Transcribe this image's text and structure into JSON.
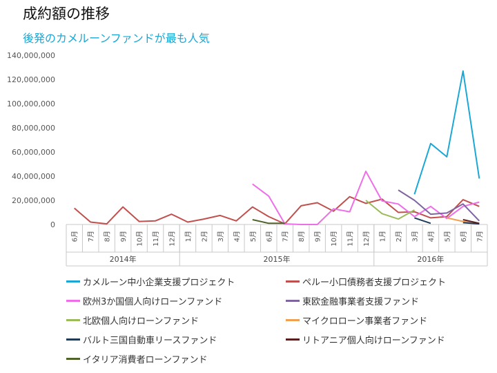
{
  "title": "成約額の推移",
  "subtitle": "後発のカメルーンファンドが最も人気",
  "chart_data": {
    "type": "line",
    "months": [
      "6月",
      "7月",
      "8月",
      "9月",
      "10月",
      "11月",
      "12月",
      "1月",
      "2月",
      "3月",
      "4月",
      "5月",
      "6月",
      "7月",
      "8月",
      "9月",
      "10月",
      "11月",
      "12月",
      "1月",
      "2月",
      "3月",
      "4月",
      "5月",
      "6月",
      "7月"
    ],
    "years": [
      {
        "label": "2014年",
        "start": 0,
        "end": 6
      },
      {
        "label": "2015年",
        "start": 7,
        "end": 18
      },
      {
        "label": "2016年",
        "start": 19,
        "end": 25
      }
    ],
    "ylim": [
      0,
      140000000
    ],
    "y_ticks": [
      0,
      20000000,
      40000000,
      60000000,
      80000000,
      100000000,
      120000000,
      140000000
    ],
    "y_tick_labels": [
      "0",
      "20,000,000",
      "40,000,000",
      "60,000,000",
      "80,000,000",
      "100,000,000",
      "120,000,000",
      "140,000,000"
    ],
    "series": [
      {
        "name": "カメルーン中小企業支援プロジェクト",
        "color": "#1aa7d6",
        "values": [
          null,
          null,
          null,
          null,
          null,
          null,
          null,
          null,
          null,
          null,
          null,
          null,
          null,
          null,
          null,
          null,
          null,
          null,
          null,
          null,
          null,
          25000000,
          67000000,
          56000000,
          127000000,
          38000000
        ]
      },
      {
        "name": "ペルー小口債務者支援プロジェクト",
        "color": "#c0504d",
        "values": [
          13500000,
          2000000,
          500000,
          14500000,
          2500000,
          3000000,
          8500000,
          2000000,
          4500000,
          7500000,
          3000000,
          14500000,
          6500000,
          500000,
          15500000,
          18000000,
          11000000,
          23000000,
          17500000,
          21000000,
          10000000,
          10500000,
          5500000,
          6500000,
          20500000,
          15000000
        ]
      },
      {
        "name": "欧州3か国個人向けローンファンド",
        "color": "#ee6ee8",
        "values": [
          null,
          null,
          null,
          null,
          null,
          null,
          null,
          null,
          null,
          null,
          null,
          33500000,
          23500000,
          500000,
          0,
          0,
          13000000,
          10500000,
          44000000,
          19500000,
          17000000,
          6500000,
          15000000,
          5000000,
          15000000,
          18500000
        ]
      },
      {
        "name": "東欧金融事業者支援ファンド",
        "color": "#7e64a0",
        "values": [
          null,
          null,
          null,
          null,
          null,
          null,
          null,
          null,
          null,
          null,
          null,
          null,
          null,
          null,
          null,
          null,
          null,
          null,
          null,
          null,
          28500000,
          20000000,
          8500000,
          9500000,
          17000000,
          3000000
        ]
      },
      {
        "name": "北欧個人向けローンファンド",
        "color": "#9bbb59",
        "values": [
          null,
          null,
          null,
          null,
          null,
          null,
          null,
          null,
          null,
          null,
          null,
          null,
          null,
          null,
          null,
          null,
          null,
          null,
          20000000,
          9000000,
          4500000,
          12000000,
          null,
          null,
          null,
          null
        ]
      },
      {
        "name": "マイクロローン事業者ファンド",
        "color": "#f0a050",
        "values": [
          null,
          null,
          null,
          null,
          null,
          null,
          null,
          null,
          null,
          null,
          null,
          null,
          null,
          null,
          null,
          null,
          null,
          null,
          null,
          null,
          null,
          null,
          null,
          5500000,
          2500000,
          500000
        ]
      },
      {
        "name": "バルト三国自動車リースファンド",
        "color": "#1f3b57",
        "values": [
          null,
          null,
          null,
          null,
          null,
          null,
          null,
          null,
          null,
          null,
          null,
          null,
          null,
          null,
          null,
          null,
          null,
          null,
          null,
          null,
          null,
          5500000,
          1000000,
          null,
          1500000,
          500000
        ]
      },
      {
        "name": "リトアニア個人向けローンファンド",
        "color": "#5a1e1e",
        "values": [
          null,
          null,
          null,
          null,
          null,
          null,
          null,
          null,
          null,
          null,
          null,
          null,
          null,
          null,
          null,
          null,
          null,
          null,
          null,
          null,
          null,
          null,
          null,
          null,
          4000000,
          1000000
        ]
      },
      {
        "name": "イタリア消費者ローンファンド",
        "color": "#4f6228",
        "values": [
          null,
          null,
          null,
          null,
          null,
          null,
          null,
          null,
          null,
          null,
          null,
          4000000,
          1000000,
          1000000,
          null,
          null,
          null,
          null,
          null,
          null,
          null,
          null,
          null,
          null,
          null,
          null
        ]
      }
    ]
  }
}
